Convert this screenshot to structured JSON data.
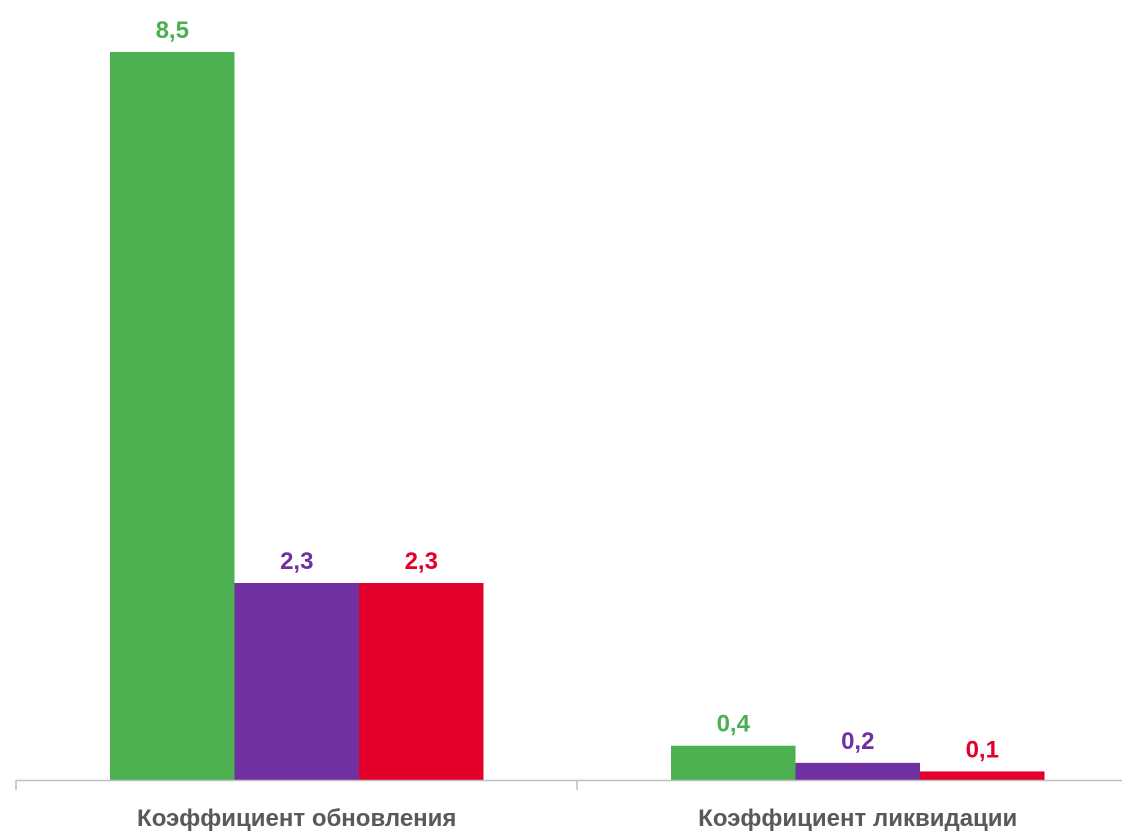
{
  "chart_data": {
    "type": "bar",
    "categories": [
      "Коэффициент обновления",
      "Коэффициент ликвидации"
    ],
    "series": [
      {
        "values": [
          8.5,
          0.4
        ],
        "labels": [
          "8,5",
          "0,4"
        ],
        "color": "#4CAF50"
      },
      {
        "values": [
          2.3,
          0.2
        ],
        "labels": [
          "2,3",
          "0,2"
        ],
        "color": "#7030A0"
      },
      {
        "values": [
          2.3,
          0.1
        ],
        "labels": [
          "2,3",
          "0,1"
        ],
        "color": "#E3002B"
      }
    ],
    "ylim": [
      0,
      8.5
    ],
    "axis_color": "#BFBFBF",
    "grid": false,
    "legend": "none"
  }
}
